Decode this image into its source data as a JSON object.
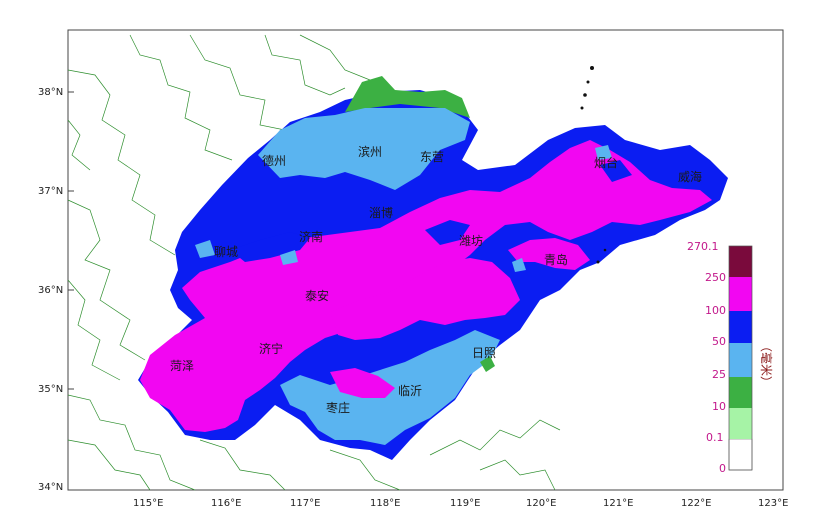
{
  "axes": {
    "lat_labels": [
      "38°N",
      "37°N",
      "36°N",
      "35°N",
      "34°N"
    ],
    "lon_labels": [
      "115°E",
      "116°E",
      "117°E",
      "118°E",
      "119°E",
      "120°E",
      "121°E",
      "122°E",
      "123°E"
    ]
  },
  "cities": [
    "滨州",
    "东营",
    "烟台",
    "威海",
    "德州",
    "济南",
    "淄博",
    "潍坊",
    "青岛",
    "聊城",
    "泰安",
    "菏泽",
    "济宁",
    "日照",
    "枣庄",
    "临沂"
  ],
  "legend": {
    "unit": "（毫米）",
    "bins": [
      {
        "label": "0",
        "color": "#ffffff"
      },
      {
        "label": "0.1",
        "color": "#a6f3a6"
      },
      {
        "label": "10",
        "color": "#3cb043"
      },
      {
        "label": "25",
        "color": "#5ab4f0"
      },
      {
        "label": "50",
        "color": "#0b1df2"
      },
      {
        "label": "100",
        "color": "#f206f2"
      },
      {
        "label": "250",
        "color": "#7a0a3c"
      }
    ],
    "max_label": "270.1"
  }
}
